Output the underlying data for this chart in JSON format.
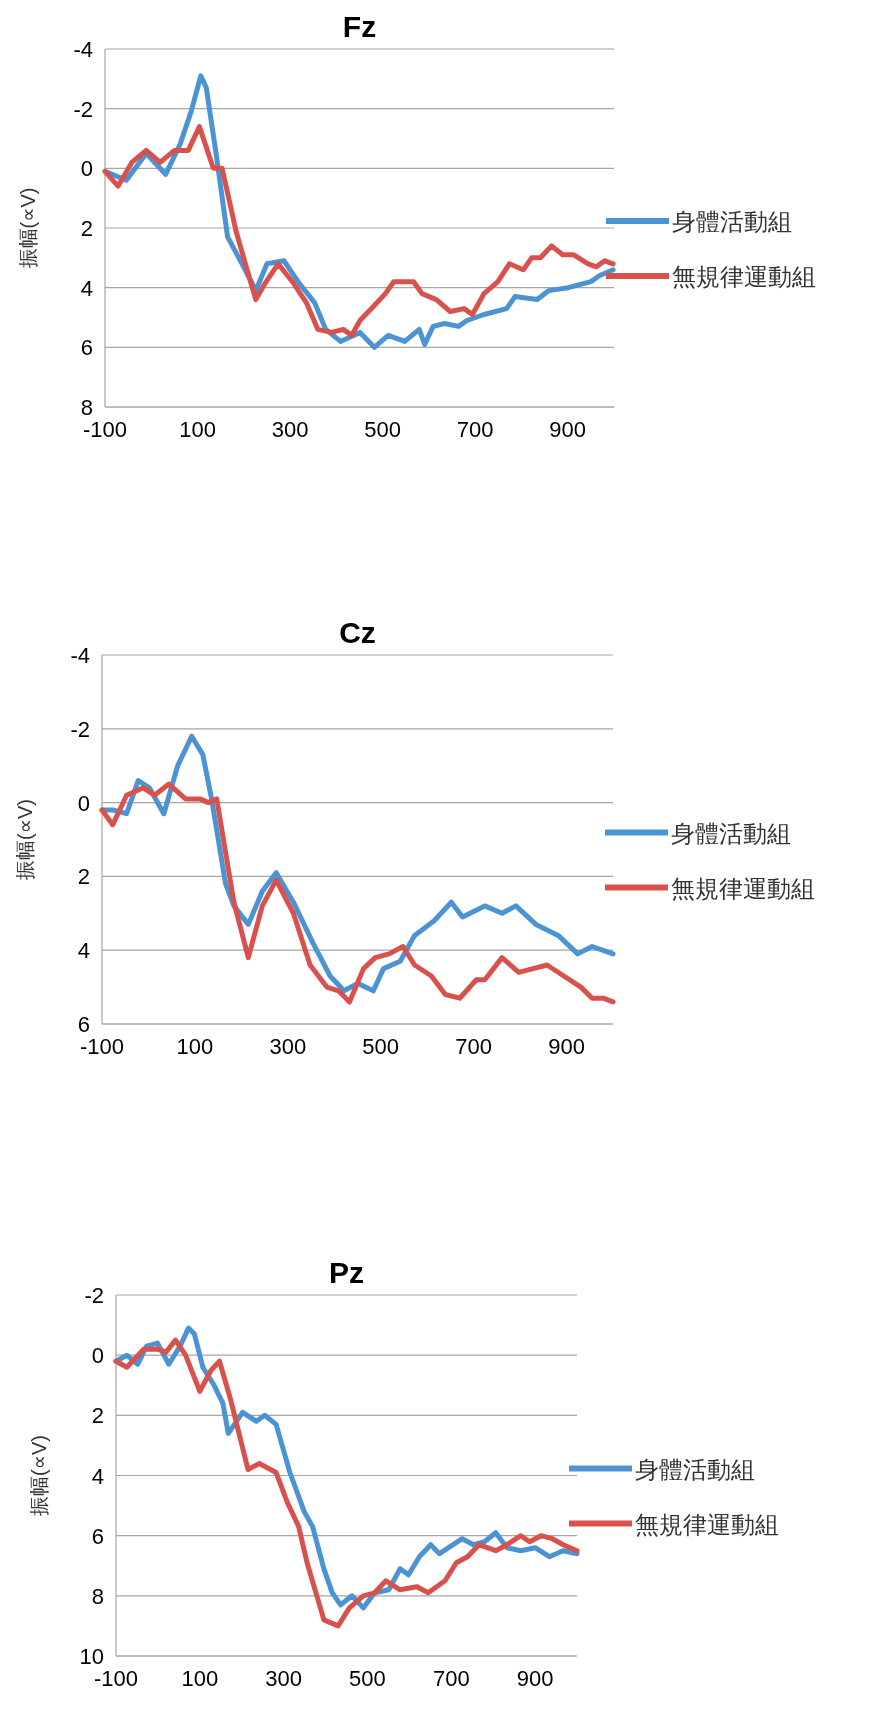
{
  "chart_data": [
    {
      "type": "line",
      "title": "Fz",
      "ylabel": "振幅(∝V)",
      "xlim": [
        -100,
        1000
      ],
      "xticks": [
        -100,
        100,
        300,
        500,
        700,
        900
      ],
      "ylim": [
        8,
        -4
      ],
      "yticks": [
        -4,
        -2,
        0,
        2,
        4,
        6,
        8
      ],
      "grid": "y",
      "legend": "right",
      "marker": "none",
      "line_style": "solid",
      "series": [
        {
          "name": "身體活動組",
          "color": "#4b93d3",
          "x": [
            -100,
            -54,
            -11,
            31,
            62,
            86,
            107,
            119,
            141,
            165,
            196,
            226,
            250,
            287,
            317,
            353,
            377,
            409,
            451,
            482,
            512,
            548,
            579,
            591,
            609,
            634,
            664,
            682,
            719,
            768,
            786,
            834,
            859,
            901,
            950,
            968,
            998
          ],
          "values": [
            0.1,
            0.4,
            -0.5,
            0.2,
            -0.8,
            -1.9,
            -3.1,
            -2.7,
            -0.4,
            2.3,
            3.2,
            4.1,
            3.2,
            3.1,
            3.8,
            4.5,
            5.4,
            5.8,
            5.5,
            6.0,
            5.6,
            5.8,
            5.4,
            5.9,
            5.3,
            5.2,
            5.3,
            5.1,
            4.9,
            4.7,
            4.3,
            4.4,
            4.1,
            4.0,
            3.8,
            3.6,
            3.4
          ]
        },
        {
          "name": "無規律運動組",
          "color": "#d9514c",
          "x": [
            -100,
            -72,
            -42,
            -11,
            19,
            50,
            80,
            104,
            134,
            153,
            183,
            207,
            226,
            244,
            274,
            305,
            335,
            360,
            390,
            415,
            433,
            451,
            482,
            506,
            524,
            567,
            585,
            616,
            646,
            676,
            694,
            719,
            749,
            774,
            804,
            822,
            841,
            865,
            889,
            913,
            944,
            962,
            980,
            998
          ],
          "values": [
            0.1,
            0.6,
            -0.2,
            -0.6,
            -0.2,
            -0.6,
            -0.6,
            -1.4,
            0.0,
            0.0,
            2.1,
            3.4,
            4.4,
            3.9,
            3.2,
            3.8,
            4.5,
            5.4,
            5.5,
            5.4,
            5.6,
            5.1,
            4.6,
            4.2,
            3.8,
            3.8,
            4.2,
            4.4,
            4.8,
            4.7,
            4.9,
            4.2,
            3.8,
            3.2,
            3.4,
            3.0,
            3.0,
            2.6,
            2.9,
            2.9,
            3.2,
            3.3,
            3.1,
            3.2
          ]
        }
      ]
    },
    {
      "type": "line",
      "title": "Cz",
      "ylabel": "振幅(∝V)",
      "xlim": [
        -100,
        1000
      ],
      "xticks": [
        -100,
        100,
        300,
        500,
        700,
        900
      ],
      "ylim": [
        6,
        -4
      ],
      "yticks": [
        -4,
        -2,
        0,
        2,
        4,
        6
      ],
      "grid": "y",
      "legend": "right",
      "marker": "none",
      "line_style": "solid",
      "series": [
        {
          "name": "身體活動組",
          "color": "#4b93d3",
          "x": [
            -100,
            -77,
            -47,
            -22,
            2,
            33,
            63,
            93,
            117,
            136,
            166,
            184,
            215,
            245,
            275,
            312,
            354,
            391,
            421,
            451,
            484,
            506,
            542,
            573,
            615,
            652,
            676,
            724,
            761,
            791,
            834,
            882,
            924,
            955,
            1000
          ],
          "values": [
            0.2,
            0.2,
            0.3,
            -0.6,
            -0.4,
            0.3,
            -1.0,
            -1.8,
            -1.3,
            -0.1,
            2.2,
            2.8,
            3.3,
            2.4,
            1.9,
            2.7,
            3.8,
            4.7,
            5.1,
            4.9,
            5.1,
            4.5,
            4.3,
            3.6,
            3.2,
            2.7,
            3.1,
            2.8,
            3.0,
            2.8,
            3.3,
            3.6,
            4.1,
            3.9,
            4.1
          ]
        },
        {
          "name": "無規律運動組",
          "color": "#d9514c",
          "x": [
            -100,
            -77,
            -47,
            -11,
            13,
            44,
            80,
            111,
            129,
            147,
            184,
            215,
            245,
            275,
            312,
            348,
            384,
            409,
            433,
            463,
            488,
            518,
            548,
            573,
            609,
            639,
            670,
            706,
            724,
            761,
            797,
            828,
            858,
            894,
            931,
            955,
            979,
            1000
          ],
          "values": [
            0.2,
            0.6,
            -0.2,
            -0.4,
            -0.2,
            -0.5,
            -0.1,
            -0.1,
            0.0,
            -0.1,
            2.7,
            4.2,
            2.8,
            2.1,
            3.0,
            4.4,
            5.0,
            5.1,
            5.4,
            4.5,
            4.2,
            4.1,
            3.9,
            4.4,
            4.7,
            5.2,
            5.3,
            4.8,
            4.8,
            4.2,
            4.6,
            4.5,
            4.4,
            4.7,
            5.0,
            5.3,
            5.3,
            5.4
          ]
        }
      ]
    },
    {
      "type": "line",
      "title": "Pz",
      "ylabel": "振幅(∝V)",
      "xlim": [
        -100,
        1000
      ],
      "xticks": [
        -100,
        100,
        300,
        500,
        700,
        900
      ],
      "ylim": [
        10,
        -2
      ],
      "yticks": [
        -2,
        0,
        2,
        4,
        6,
        8,
        10
      ],
      "grid": "y",
      "legend": "right",
      "marker": "none",
      "line_style": "solid",
      "series": [
        {
          "name": "身體活動組",
          "color": "#4b93d3",
          "x": [
            -100,
            -74,
            -48,
            -27,
            -1,
            26,
            53,
            73,
            87,
            107,
            134,
            155,
            168,
            202,
            235,
            255,
            282,
            315,
            349,
            369,
            396,
            416,
            436,
            463,
            490,
            517,
            551,
            578,
            598,
            624,
            651,
            672,
            726,
            753,
            779,
            806,
            833,
            866,
            900,
            934,
            967,
            1000
          ],
          "values": [
            0.2,
            0.0,
            0.3,
            -0.3,
            -0.4,
            0.3,
            -0.3,
            -0.9,
            -0.7,
            0.4,
            1.0,
            1.6,
            2.6,
            1.9,
            2.2,
            2.0,
            2.3,
            3.9,
            5.2,
            5.7,
            7.1,
            7.9,
            8.3,
            8.0,
            8.4,
            7.9,
            7.8,
            7.1,
            7.3,
            6.7,
            6.3,
            6.6,
            6.1,
            6.3,
            6.2,
            5.9,
            6.4,
            6.5,
            6.4,
            6.7,
            6.5,
            6.6
          ]
        },
        {
          "name": "無規律運動組",
          "color": "#d9514c",
          "x": [
            -100,
            -74,
            -34,
            -1,
            19,
            42,
            66,
            100,
            127,
            147,
            174,
            215,
            242,
            282,
            309,
            336,
            356,
            396,
            430,
            457,
            490,
            517,
            544,
            578,
            618,
            645,
            685,
            712,
            739,
            766,
            806,
            833,
            866,
            887,
            914,
            941,
            967,
            1000
          ],
          "values": [
            0.2,
            0.4,
            -0.2,
            -0.2,
            -0.1,
            -0.5,
            0.0,
            1.2,
            0.5,
            0.2,
            1.5,
            3.8,
            3.6,
            3.9,
            4.9,
            5.7,
            6.9,
            8.8,
            9.0,
            8.4,
            8.0,
            7.9,
            7.5,
            7.8,
            7.7,
            7.9,
            7.5,
            6.9,
            6.7,
            6.3,
            6.5,
            6.3,
            6.0,
            6.2,
            6.0,
            6.1,
            6.3,
            6.5
          ]
        }
      ]
    }
  ]
}
